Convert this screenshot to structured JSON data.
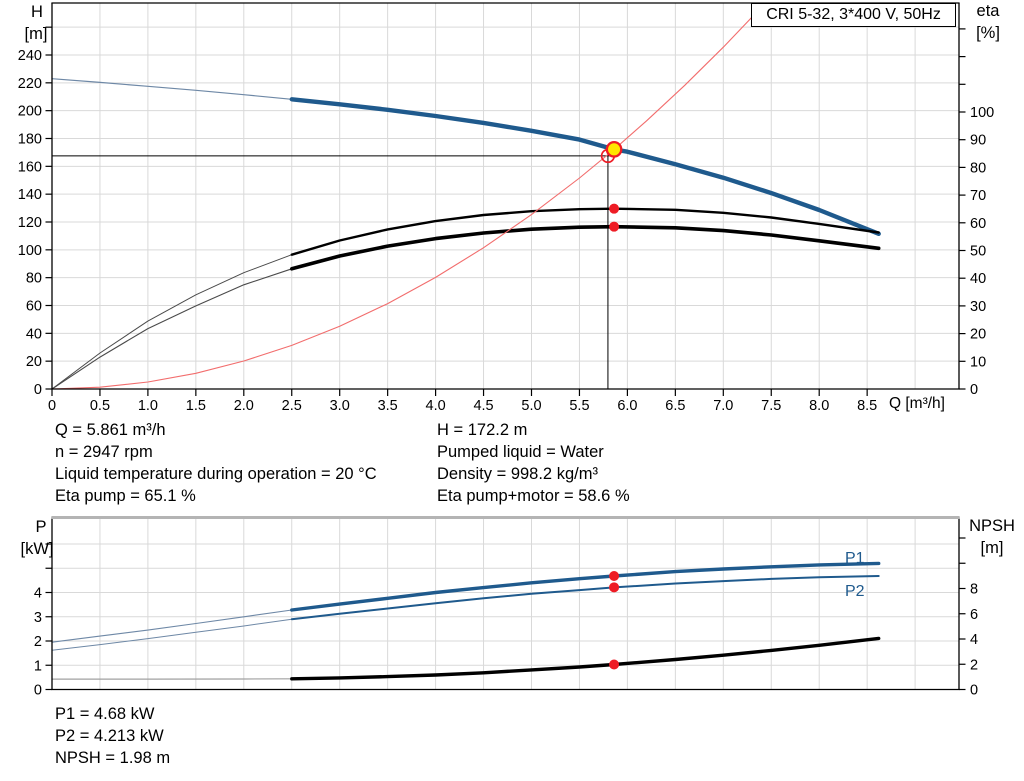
{
  "colors": {
    "blue": "#1f5a8d",
    "thin_blue": "#6e88a6",
    "black": "#000000",
    "thin_black": "#4a4a4a",
    "thin_gray": "#a0a0a0",
    "light_red": "#f26d6d",
    "red": "#ee1c25",
    "yellow": "#ffe600",
    "grid": "#d9d9d9",
    "border_gray": "#b4b4b4"
  },
  "axis_titles": {
    "h": [
      "H",
      "[m]"
    ],
    "eta": [
      "eta",
      "[%]"
    ],
    "p": [
      "P",
      "[kW]"
    ],
    "npsh": [
      "NPSH",
      "[m]"
    ]
  },
  "annotations": {
    "top_left": [
      "Q = 5.861 m³/h",
      "n = 2947 rpm",
      "Liquid temperature during operation = 20 °C",
      "Eta pump = 65.1 %"
    ],
    "top_right": [
      "H = 172.2 m",
      "Pumped liquid = Water",
      "Density = 998.2 kg/m³",
      "Eta pump+motor = 58.6 %"
    ],
    "bottom": [
      "P1 = 4.68 kW",
      "P2 = 4.213 kW",
      "NPSH = 1.98 m"
    ]
  },
  "chart_data": [
    {
      "type": "line",
      "panel": "top",
      "title": "CRI 5-32, 3*400 V, 50Hz",
      "x_axis": {
        "label": "Q [m³/h]",
        "min": 0,
        "max": 9.46,
        "tick_step": 0.5,
        "grid_max": 9.0,
        "tick_labels": [
          "0",
          "0.5",
          "1.0",
          "1.5",
          "2.0",
          "2.5",
          "3.0",
          "3.5",
          "4.0",
          "4.5",
          "5.0",
          "5.5",
          "6.0",
          "6.5",
          "7.0",
          "7.5",
          "8.0",
          "8.5"
        ]
      },
      "y_left": {
        "label": "H [m]",
        "min": 0,
        "max": 278,
        "grid_step": 20,
        "grid_max": 260,
        "ticks": [
          0,
          20,
          40,
          60,
          80,
          100,
          120,
          140,
          160,
          180,
          200,
          220,
          240
        ],
        "unlabeled_ticks": [
          260
        ]
      },
      "y_right": {
        "label": "eta [%]",
        "min": 0,
        "max": 139,
        "ticks": [
          0,
          10,
          20,
          30,
          40,
          50,
          60,
          70,
          80,
          90,
          100
        ],
        "unlabeled_ticks": [
          110,
          120,
          130
        ]
      },
      "series": [
        {
          "id": "hq-curve",
          "axis": "left",
          "color": "blue",
          "width": 4.4,
          "thin_until": 2.5,
          "thin_width": 1.2,
          "thin_color": "thin_blue",
          "points": [
            [
              0,
              223
            ],
            [
              0.5,
              220.3
            ],
            [
              1,
              217.5
            ],
            [
              1.5,
              214.6
            ],
            [
              2,
              211.5
            ],
            [
              2.5,
              208.2
            ],
            [
              3,
              204.6
            ],
            [
              3.5,
              200.6
            ],
            [
              4,
              196.2
            ],
            [
              4.5,
              191.2
            ],
            [
              5,
              185.5
            ],
            [
              5.5,
              179.2
            ],
            [
              5.861,
              172.2
            ],
            [
              6,
              170.5
            ],
            [
              6.5,
              161.5
            ],
            [
              7,
              151.8
            ],
            [
              7.5,
              140.8
            ],
            [
              8,
              128.6
            ],
            [
              8.62,
              111.5
            ]
          ]
        },
        {
          "id": "eta-pump-curve",
          "axis": "right",
          "color": "black",
          "width": 2.4,
          "thin_until": 2.5,
          "thin_width": 1,
          "thin_color": "thin_black",
          "points": [
            [
              0,
              0
            ],
            [
              0.5,
              13
            ],
            [
              1,
              24.5
            ],
            [
              1.5,
              34
            ],
            [
              2,
              42
            ],
            [
              2.5,
              48.5
            ],
            [
              3,
              53.6
            ],
            [
              3.5,
              57.6
            ],
            [
              4,
              60.6
            ],
            [
              4.5,
              62.8
            ],
            [
              5,
              64.2
            ],
            [
              5.5,
              64.9
            ],
            [
              5.861,
              65.1
            ],
            [
              6.5,
              64.7
            ],
            [
              7,
              63.6
            ],
            [
              7.5,
              61.9
            ],
            [
              8,
              59.6
            ],
            [
              8.62,
              56.5
            ]
          ]
        },
        {
          "id": "eta-pump-motor-curve",
          "axis": "right",
          "color": "black",
          "width": 3.6,
          "thin_until": 2.5,
          "thin_width": 1.1,
          "thin_color": "thin_black",
          "points": [
            [
              0,
              0
            ],
            [
              0.5,
              11.5
            ],
            [
              1,
              21.8
            ],
            [
              1.5,
              30
            ],
            [
              2,
              37.6
            ],
            [
              2.5,
              43.4
            ],
            [
              3,
              48
            ],
            [
              3.5,
              51.6
            ],
            [
              4,
              54.3
            ],
            [
              4.5,
              56.3
            ],
            [
              5,
              57.7
            ],
            [
              5.5,
              58.4
            ],
            [
              5.861,
              58.6
            ],
            [
              6.5,
              58.2
            ],
            [
              7,
              57.2
            ],
            [
              7.5,
              55.6
            ],
            [
              8,
              53.5
            ],
            [
              8.62,
              50.8
            ]
          ]
        },
        {
          "id": "system-curve",
          "axis": "left",
          "color": "light_red",
          "width": 1.1,
          "points": [
            [
              0,
              0
            ],
            [
              0.5,
              1.3
            ],
            [
              1,
              5
            ],
            [
              1.5,
              11.3
            ],
            [
              2,
              20.1
            ],
            [
              2.5,
              31.3
            ],
            [
              3,
              45.1
            ],
            [
              3.5,
              61.4
            ],
            [
              4,
              80.2
            ],
            [
              4.5,
              101.5
            ],
            [
              5,
              125.3
            ],
            [
              5.5,
              151.6
            ],
            [
              5.861,
              172.2
            ],
            [
              6.2,
              192.7
            ],
            [
              6.6,
              218.3
            ],
            [
              7,
              245.6
            ],
            [
              7.42,
              276
            ]
          ]
        }
      ],
      "crosshair": {
        "horizontal_h": 167.5,
        "vertical_q": 5.797
      },
      "markers": [
        {
          "id": "requested-duty-point",
          "style": "open-red",
          "q": 5.797,
          "value": 167.5,
          "axis": "left"
        },
        {
          "id": "duty-point",
          "style": "duty-yellow",
          "q": 5.861,
          "value": 172.2,
          "axis": "left"
        },
        {
          "id": "eta-pump-duty-dot",
          "style": "red-dot",
          "q": 5.861,
          "value": 65.1,
          "axis": "right"
        },
        {
          "id": "eta-pump-motor-duty-dot",
          "style": "red-dot",
          "q": 5.861,
          "value": 58.6,
          "axis": "right"
        }
      ]
    },
    {
      "type": "line",
      "panel": "bottom",
      "x_axis": {
        "min": 0,
        "max": 9.46,
        "tick_step": 0.5,
        "grid_max": 9.0
      },
      "y_left": {
        "label": "P [kW]",
        "min": 0,
        "max": 7,
        "grid_step": 1,
        "grid_max": 6,
        "ticks": [
          0,
          1,
          2,
          3,
          4
        ],
        "unlabeled_ticks": [
          5,
          6
        ]
      },
      "y_right": {
        "label": "NPSH [m]",
        "min": 0,
        "max": 13.5,
        "ticks": [
          0,
          2,
          4,
          6,
          8
        ],
        "unlabeled_ticks": [
          10,
          12
        ]
      },
      "series": [
        {
          "id": "p1-curve",
          "axis": "left",
          "color": "blue",
          "width": 3.4,
          "thin_until": 2.5,
          "thin_width": 1.1,
          "thin_color": "thin_blue",
          "points": [
            [
              0,
              1.95
            ],
            [
              0.5,
              2.2
            ],
            [
              1,
              2.45
            ],
            [
              1.5,
              2.72
            ],
            [
              2,
              3
            ],
            [
              2.5,
              3.28
            ],
            [
              3,
              3.52
            ],
            [
              3.5,
              3.76
            ],
            [
              4,
              4
            ],
            [
              4.5,
              4.2
            ],
            [
              5,
              4.4
            ],
            [
              5.5,
              4.57
            ],
            [
              5.861,
              4.68
            ],
            [
              6.5,
              4.86
            ],
            [
              7,
              4.97
            ],
            [
              7.5,
              5.06
            ],
            [
              8,
              5.14
            ],
            [
              8.62,
              5.2
            ]
          ]
        },
        {
          "id": "p2-curve",
          "axis": "left",
          "color": "blue",
          "width": 2,
          "thin_until": 2.5,
          "thin_width": 1,
          "thin_color": "thin_blue",
          "points": [
            [
              0,
              1.62
            ],
            [
              0.5,
              1.85
            ],
            [
              1,
              2.1
            ],
            [
              1.5,
              2.36
            ],
            [
              2,
              2.62
            ],
            [
              2.5,
              2.9
            ],
            [
              3,
              3.12
            ],
            [
              3.5,
              3.34
            ],
            [
              4,
              3.56
            ],
            [
              4.5,
              3.76
            ],
            [
              5,
              3.95
            ],
            [
              5.5,
              4.1
            ],
            [
              5.861,
              4.21
            ],
            [
              6.5,
              4.37
            ],
            [
              7,
              4.47
            ],
            [
              7.5,
              4.56
            ],
            [
              8,
              4.63
            ],
            [
              8.62,
              4.68
            ]
          ]
        },
        {
          "id": "npsh-curve",
          "axis": "right",
          "color": "black",
          "width": 3.4,
          "thin_until": 2.5,
          "thin_width": 1.2,
          "thin_color": "thin_gray",
          "points": [
            [
              0,
              0.82
            ],
            [
              1,
              0.82
            ],
            [
              2,
              0.83
            ],
            [
              2.5,
              0.85
            ],
            [
              3,
              0.92
            ],
            [
              3.5,
              1.02
            ],
            [
              4,
              1.15
            ],
            [
              4.5,
              1.32
            ],
            [
              5,
              1.55
            ],
            [
              5.5,
              1.78
            ],
            [
              5.861,
              1.98
            ],
            [
              6.5,
              2.38
            ],
            [
              7,
              2.72
            ],
            [
              7.5,
              3.1
            ],
            [
              8,
              3.5
            ],
            [
              8.62,
              4.05
            ]
          ]
        }
      ],
      "markers": [
        {
          "id": "p1-duty-dot",
          "style": "red-dot",
          "q": 5.861,
          "value": 4.68,
          "axis": "left"
        },
        {
          "id": "p2-duty-dot",
          "style": "red-dot",
          "q": 5.861,
          "value": 4.213,
          "axis": "left"
        },
        {
          "id": "npsh-duty-dot",
          "style": "red-dot",
          "q": 5.861,
          "value": 1.98,
          "axis": "right"
        }
      ],
      "curve_labels": [
        {
          "id": "p1-curve-label",
          "text": "P1"
        },
        {
          "id": "p2-curve-label",
          "text": "P2"
        }
      ]
    }
  ]
}
